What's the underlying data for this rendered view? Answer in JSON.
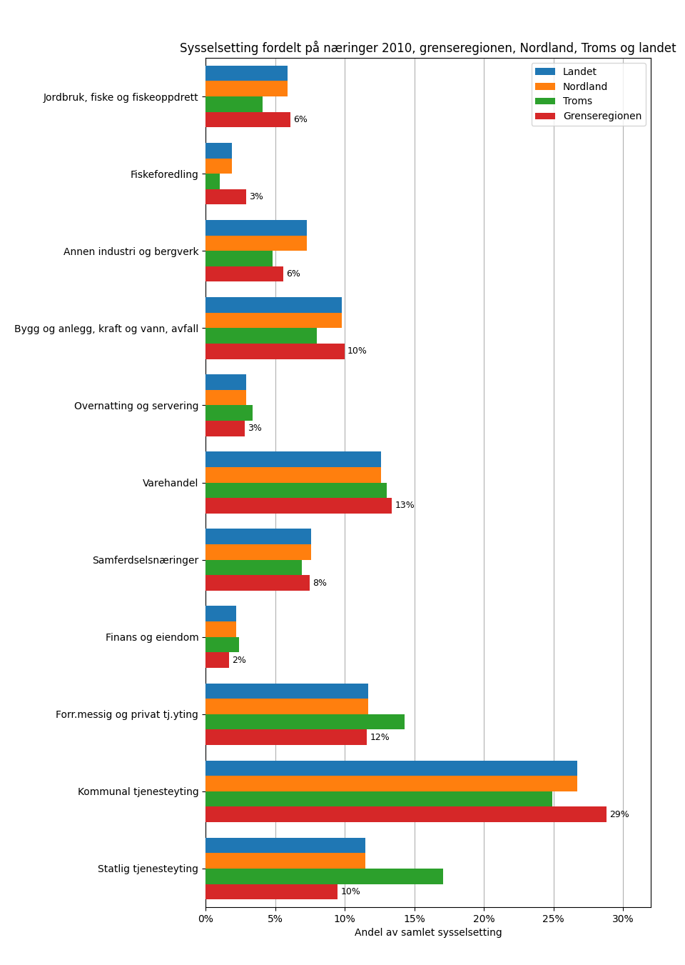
{
  "chart_data": {
    "type": "bar",
    "orientation": "horizontal",
    "title": "Sysselsetting fordelt på næringer 2010, grenseregionen, Nordland, Troms og landet",
    "xlabel": "Andel av samlet sysselsetting",
    "categories": [
      "Jordbruk, fiske og fiskeoppdrett",
      "Fiskeforedling",
      "Annen industri og bergverk",
      "Bygg og anlegg, kraft og vann, avfall",
      "Overnatting og servering",
      "Varehandel",
      "Samferdselsnæringer",
      "Finans og eiendom",
      "Forr.messig og privat tj.yting",
      "Kommunal tjenesteyting",
      "Statlig tjenesteyting"
    ],
    "series": [
      {
        "name": "Landet",
        "values": [
          0.059,
          0.019,
          0.073,
          0.098,
          0.029,
          0.126,
          0.076,
          0.022,
          0.117,
          0.267,
          0.115
        ]
      },
      {
        "name": "Nordland",
        "values": [
          0.059,
          0.019,
          0.073,
          0.098,
          0.029,
          0.126,
          0.076,
          0.022,
          0.117,
          0.267,
          0.115
        ]
      },
      {
        "name": "Troms",
        "values": [
          0.041,
          0.01,
          0.048,
          0.08,
          0.034,
          0.13,
          0.069,
          0.024,
          0.143,
          0.249,
          0.171
        ]
      },
      {
        "name": "Grenseregionen",
        "values": [
          0.061,
          0.029,
          0.056,
          0.1,
          0.028,
          0.134,
          0.075,
          0.017,
          0.116,
          0.288,
          0.095
        ],
        "value_labels": [
          "6%",
          "3%",
          "6%",
          "10%",
          "3%",
          "13%",
          "8%",
          "2%",
          "12%",
          "29%",
          "10%"
        ],
        "data_labels": true
      }
    ],
    "xlim": [
      0,
      0.32
    ],
    "xticks": [
      {
        "value": 0.0,
        "label": "0%"
      },
      {
        "value": 0.05,
        "label": "5%"
      },
      {
        "value": 0.1,
        "label": "10%"
      },
      {
        "value": 0.15,
        "label": "15%"
      },
      {
        "value": 0.2,
        "label": "20%"
      },
      {
        "value": 0.25,
        "label": "25%"
      },
      {
        "value": 0.3,
        "label": "30%"
      }
    ],
    "grid": true,
    "legend": "upper right"
  }
}
